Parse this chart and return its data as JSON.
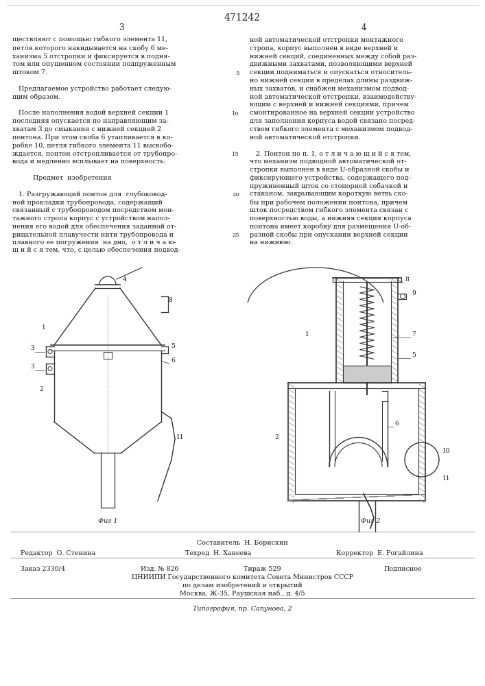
{
  "title": "471242",
  "col3": "3",
  "col4": "4",
  "bg_color": "#ffffff",
  "text_color": "#1a1a1a",
  "col1_text": [
    "ществляют с помощью гибкого элемента 11,",
    "петля которого накидывается на скобу 6 ме-",
    "ханизма 5 отстропки и фиксируется в подня-",
    "том или опущенном состоянии подпруженным",
    "штоком 7.",
    "",
    "   Предлагаемое устройство работает следую-",
    "щим образом.",
    "",
    "   После наполнения водой верхней секции 1",
    "последняя опускается по направляющим за-",
    "хватам 3 до смыкания с нижней секцией 2",
    "понтона. При этом скоба 6 утапливается в ко-",
    "робке 10, петля гибкого элемента 11 высвобо-",
    "ждается, понтон отстропливается от трубопро-",
    "вода и медленно всплывает на поверхность.",
    "",
    "          Предмет  изобретения",
    "",
    "   1. Разгружающий понтон для  глубоковод-",
    "ной прокладки трубопровода, содержащий",
    "связанный с трубопроводом посредством мон-",
    "тажного стропа корпус с устройством напол-",
    "нения его водой для обеспечения заданной от-",
    "рицательной плавучести нити трубопровода и",
    "плавного ее погружения  на дно,  о т л и ч а ю-",
    "щ и й с я тем, что, с целью обеспечения подвод-"
  ],
  "col2_text": [
    "ной автоматической отстропки монтажного",
    "стропа, корпус выполнен в виде верхней и",
    "нижней секций, соединенных между собой раз-",
    "движными захватами, позволяющими верхней",
    "секции подниматься и опускаться относитель-",
    "но нижней секции в пределах длины раздвиж-",
    "ных захватов, и снабжен механизмом подвод-",
    "ной автоматической отстропки, взаимодейству-",
    "ющим с верхней и нижней секциями, причем",
    "смонтированное на верхней секции устройство",
    "для заполнения корпуса водой связано посред-",
    "ством гибкого элемента с механизмом подвод-",
    "ной автоматической отстропки.",
    "",
    "   2. Понтон по п. 1, о т л и ч а ю щ и й с я тем,",
    "что механизм подводной автоматической от-",
    "стропки выполнен в виде U-образной скобы и",
    "фиксирующего устройства, содержащего под-",
    "пружиненный шток со стопорной собачкой и",
    "стаканом, закрывающим короткую ветвь ско-",
    "бы при рабочем положении понтона, причем",
    "шток посредством гибкого элемента связан с",
    "поверхностью воды, а нижняя секция корпуса",
    "понтона имеет коробку для размещения U-об-",
    "разной скобы при опускании верхней секции",
    "на нижнюю."
  ],
  "line_nums": [
    "5",
    "10",
    "15",
    "20",
    "25"
  ],
  "footer_line1": "Составитель  Н. Борискин",
  "footer_editor": "Редактор  О. Стенина",
  "footer_tech": "Техред  Н. Ханеева",
  "footer_corrector": "Корректор  Е. Рогайлина",
  "footer_order": "Заказ 2330/4",
  "footer_pub": "Изд. № 826",
  "footer_print": "Тираж 529",
  "footer_signed": "Подписное",
  "footer_org": "ЦНИИПИ Государственного комитета Совета Министров СССР",
  "footer_org2": "по делам изобретений и открытий",
  "footer_org3": "Москва, Ж-35, Раушская наб., д. 4/5",
  "footer_printer": "Типография, пр. Сапунова, 2",
  "fig1_label": "Фиг 1",
  "fig2_label": "Фиг 2"
}
